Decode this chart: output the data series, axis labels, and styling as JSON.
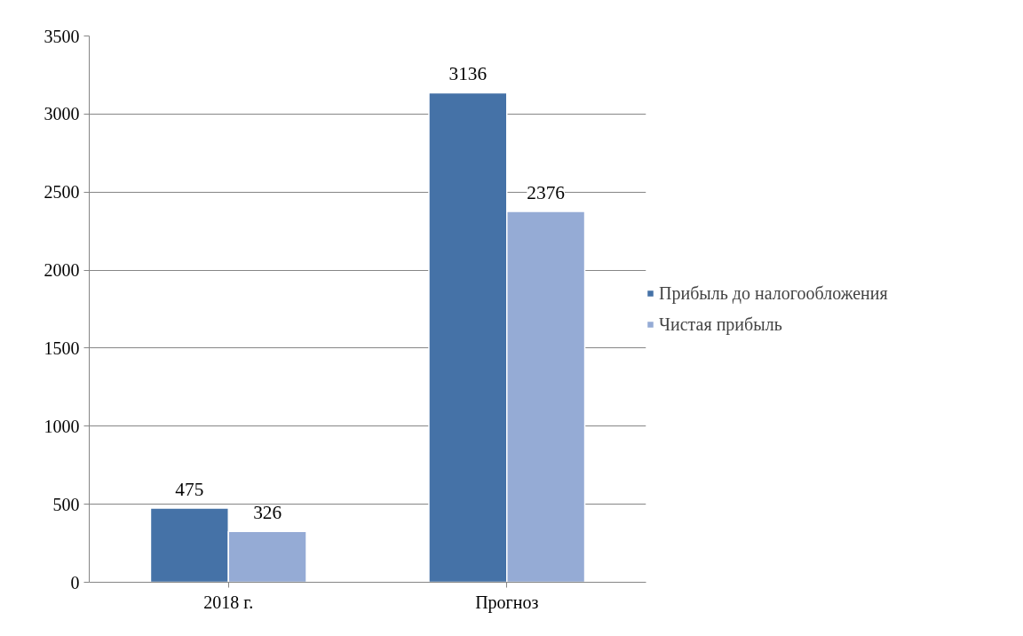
{
  "chart_data": {
    "type": "bar",
    "categories": [
      "2018 г.",
      "Прогноз"
    ],
    "series": [
      {
        "name": "Прибыль до налогообложения",
        "color": "#4572a7",
        "values": [
          475,
          3136
        ]
      },
      {
        "name": "Чистая прибыль",
        "color": "#95abd5",
        "values": [
          326,
          2376
        ]
      }
    ],
    "ylim": [
      0,
      3500
    ],
    "yticks": [
      0,
      500,
      1000,
      1500,
      2000,
      2500,
      3000,
      3500
    ],
    "grid": "y",
    "legend": "right",
    "data_labels": true
  }
}
